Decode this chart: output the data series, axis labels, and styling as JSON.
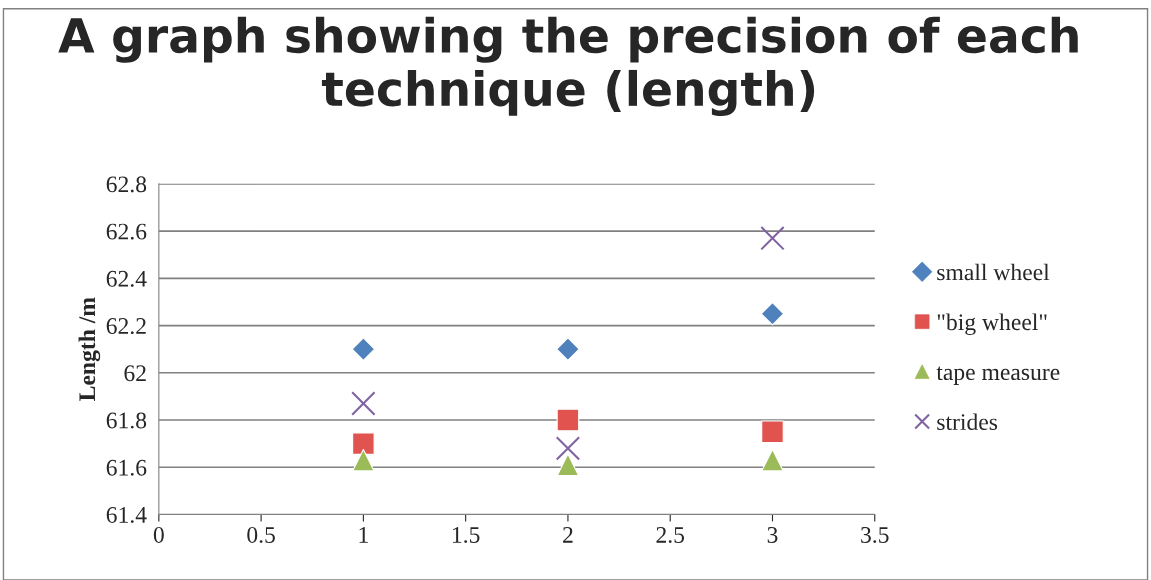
{
  "chart_data": {
    "type": "scatter",
    "title": "A graph showing the precision of each technique (length)",
    "ylabel": "Length /m",
    "x": [
      1,
      2,
      3
    ],
    "series": [
      {
        "name": "small wheel",
        "color": "#4f81bd",
        "marker": "diamond",
        "values": [
          62.1,
          62.1,
          62.25
        ]
      },
      {
        "name": "\"big wheel\"",
        "color": "#e0534f",
        "marker": "square",
        "values": [
          61.7,
          61.8,
          61.75
        ]
      },
      {
        "name": "tape measure",
        "color": "#9bbb59",
        "marker": "triangle",
        "values": [
          61.63,
          61.61,
          61.63
        ]
      },
      {
        "name": "strides",
        "color": "#8064a2",
        "marker": "cross",
        "values": [
          61.87,
          61.68,
          62.57
        ]
      }
    ],
    "xlim": [
      0,
      3.5
    ],
    "xticks": [
      0,
      0.5,
      1,
      1.5,
      2,
      2.5,
      3,
      3.5
    ],
    "ylim": [
      61.4,
      62.8
    ],
    "yticks": [
      61.4,
      61.6,
      61.8,
      62,
      62.2,
      62.4,
      62.6,
      62.8
    ],
    "grid": "y",
    "legend": "right"
  }
}
